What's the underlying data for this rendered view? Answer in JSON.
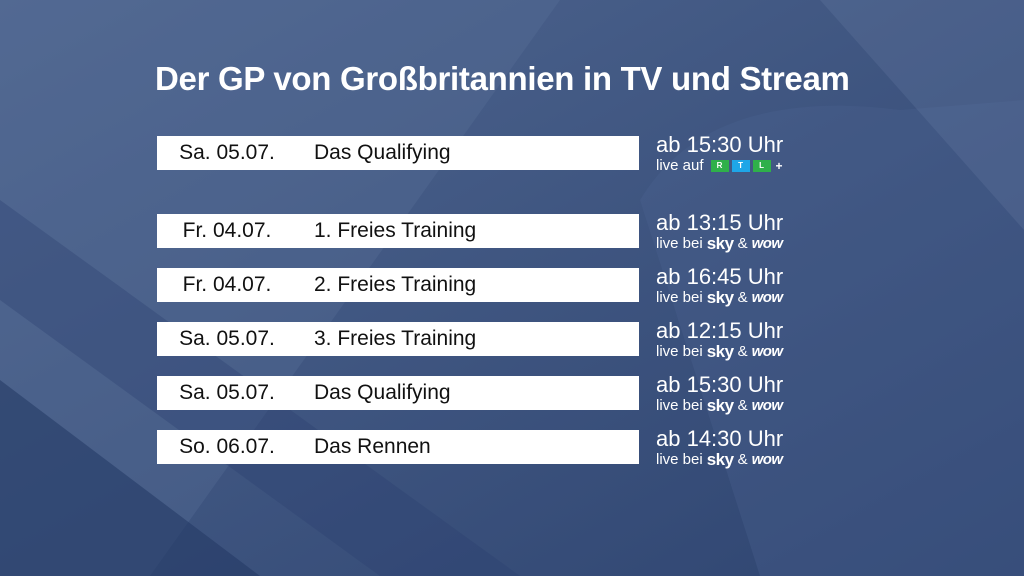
{
  "title": "Der GP von Großbritannien in TV und Stream",
  "featured": {
    "date": "Sa. 05.07.",
    "event": "Das Qualifying",
    "time": "ab 15:30 Uhr",
    "live_prefix": "live auf",
    "rtl_letters": [
      "R",
      "T",
      "L"
    ],
    "rtl_plus": "+"
  },
  "broadcaster": {
    "live_prefix": "live bei",
    "sky": "sky",
    "amp": "&",
    "wow": "wow"
  },
  "schedule": [
    {
      "date": "Fr. 04.07.",
      "event": "1. Freies Training",
      "time": "ab 13:15 Uhr"
    },
    {
      "date": "Fr. 04.07.",
      "event": "2. Freies Training",
      "time": "ab 16:45 Uhr"
    },
    {
      "date": "Sa. 05.07.",
      "event": "3. Freies Training",
      "time": "ab 12:15 Uhr"
    },
    {
      "date": "Sa. 05.07.",
      "event": "Das Qualifying",
      "time": "ab 15:30 Uhr"
    },
    {
      "date": "So. 06.07.",
      "event": "Das Rennen",
      "time": "ab 14:30 Uhr"
    }
  ],
  "colors": {
    "background": "#3a4f78",
    "rtl_green": "#2fb04a",
    "rtl_blue": "#1ea6e8"
  }
}
